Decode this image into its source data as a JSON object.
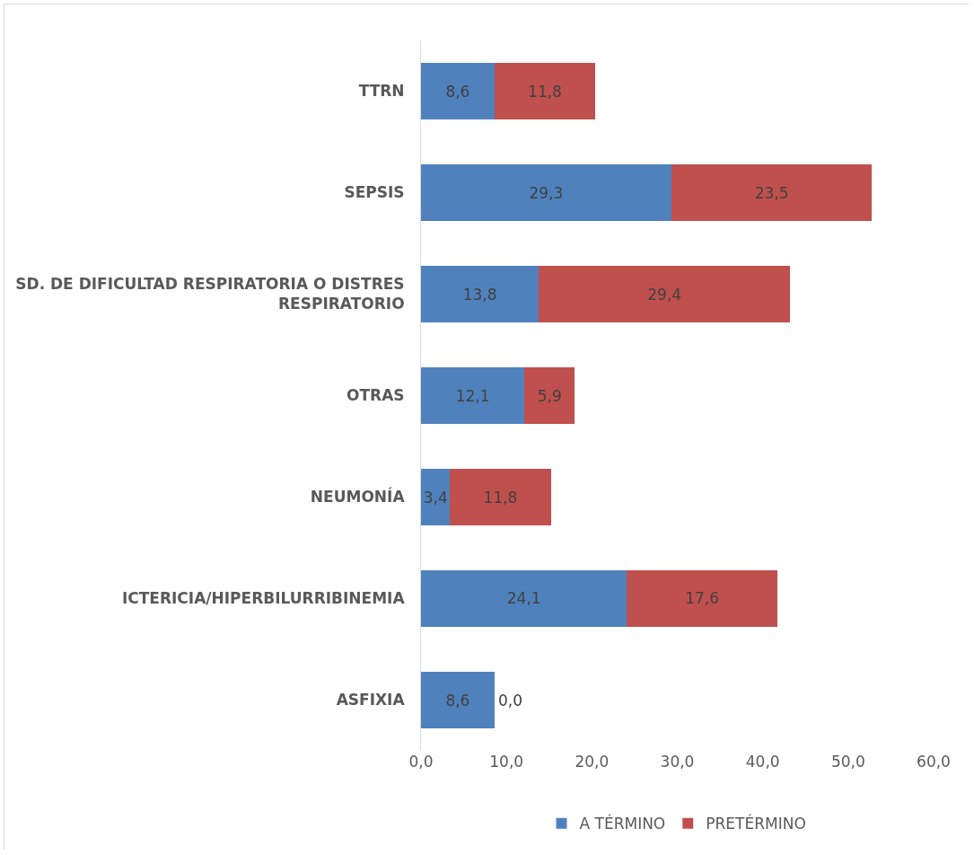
{
  "chart_data": {
    "type": "bar",
    "orientation": "horizontal",
    "stacked": true,
    "categories": [
      "TTRN",
      "SEPSIS",
      "SD. DE DIFICULTAD RESPIRATORIA O DISTRES RESPIRATORIO",
      "OTRAS",
      "NEUMONÍA",
      "ICTERICIA/HIPERBILURRIBINEMIA",
      "ASFIXIA"
    ],
    "series": [
      {
        "name": "A TÉRMINO",
        "color": "#4f81bd",
        "values": [
          8.6,
          29.3,
          13.8,
          12.1,
          3.4,
          24.1,
          8.6
        ],
        "value_labels": [
          "8,6",
          "29,3",
          "13,8",
          "12,1",
          "3,4",
          "24,1",
          "8,6"
        ]
      },
      {
        "name": "PRETÉRMINO",
        "color": "#c0504d",
        "values": [
          11.8,
          23.5,
          29.4,
          5.9,
          11.8,
          17.6,
          0.0
        ],
        "value_labels": [
          "11,8",
          "23,5",
          "29,4",
          "5,9",
          "11,8",
          "17,6",
          "0,0"
        ]
      }
    ],
    "xlim": [
      0,
      60
    ],
    "xticks": [
      {
        "value": 0,
        "label": "0,0"
      },
      {
        "value": 10,
        "label": "10,0"
      },
      {
        "value": 20,
        "label": "20,0"
      },
      {
        "value": 30,
        "label": "30,0"
      },
      {
        "value": 40,
        "label": "40,0"
      },
      {
        "value": 50,
        "label": "50,0"
      },
      {
        "value": 60,
        "label": "60,0"
      }
    ],
    "grid": false,
    "legend": "bottom"
  }
}
